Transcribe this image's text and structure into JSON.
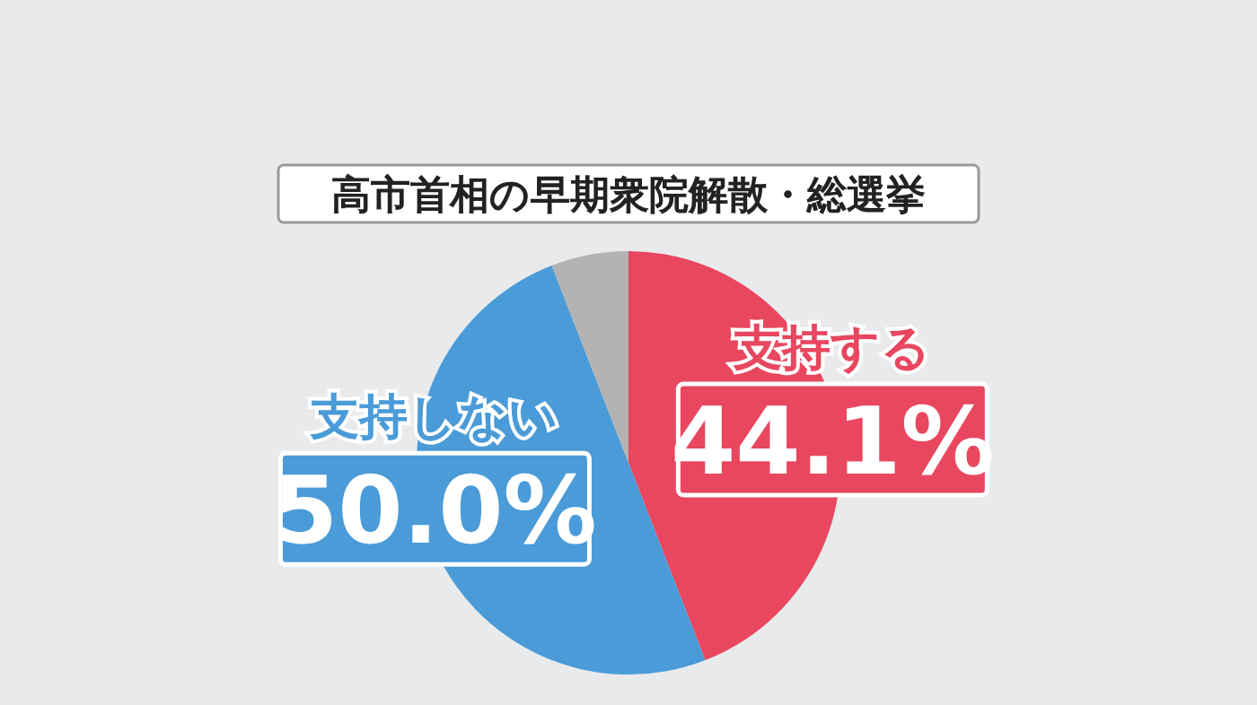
{
  "chart_data": {
    "type": "pie",
    "title": "高市首相の早期衆院解散・総選挙",
    "categories": [
      "支持する",
      "支持しない",
      null
    ],
    "values": [
      44.1,
      50.0,
      5.9
    ],
    "colors": [
      "#e8475f",
      "#4a9bd8",
      "#b3b3b3"
    ],
    "value_labels": [
      "44.1%",
      "50.0%",
      null
    ]
  }
}
